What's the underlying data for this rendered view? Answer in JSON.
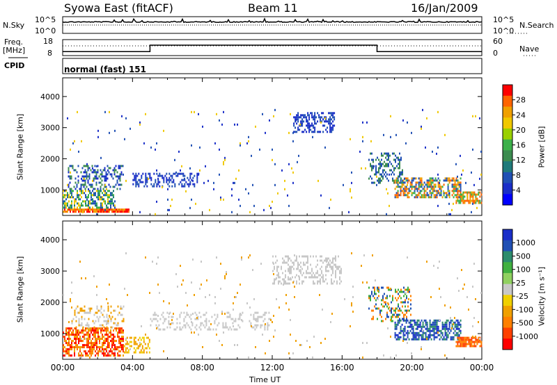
{
  "header": {
    "title": "Syowa East (fitACF)",
    "beam": "Beam 11",
    "date": "16/Jan/2009"
  },
  "panels": {
    "nsky": {
      "label": "N.Sky",
      "left_ticks": [
        "10^5",
        "10^0"
      ],
      "right_ticks": [
        "10^5",
        "10^0"
      ],
      "right_label": "N.Search"
    },
    "freq": {
      "label_line1": "Freq.",
      "label_line2": "[MHz]",
      "left_ticks": [
        "18",
        "8"
      ],
      "right_ticks": [
        "60",
        "0"
      ],
      "right_label": "Nave",
      "steps": [
        {
          "from_hour": 0,
          "to_hour": 5,
          "level": 0.75
        },
        {
          "from_hour": 5,
          "to_hour": 18,
          "level": 0.35
        },
        {
          "from_hour": 18,
          "to_hour": 24,
          "level": 0.75
        }
      ]
    },
    "cpid": {
      "label": "CPID",
      "value": "normal (fast) 151"
    }
  },
  "chart_data": [
    {
      "type": "heatmap",
      "name": "power",
      "ylabel": "Slant Range [km]",
      "xlabel": "",
      "ylim": [
        180,
        4600
      ],
      "yticks": [
        "4000",
        "3000",
        "2000",
        "1000"
      ],
      "ytick_values": [
        4000,
        3000,
        2000,
        1000
      ],
      "colorbar": {
        "label": "Power [dB]",
        "ticks": [
          "28",
          "24",
          "20",
          "16",
          "12",
          "8",
          "4"
        ],
        "colors": [
          "#ff0000",
          "#ff6400",
          "#f0a000",
          "#f0c800",
          "#9ad000",
          "#3cb04a",
          "#3c8c50",
          "#1f7a7a",
          "#2050b4",
          "#1a2ec8",
          "#0000ff"
        ]
      }
    },
    {
      "type": "heatmap",
      "name": "velocity",
      "ylabel": "Slant Range [km]",
      "xlabel": "Time UT",
      "ylim": [
        180,
        4600
      ],
      "yticks": [
        "4000",
        "3000",
        "2000",
        "1000"
      ],
      "ytick_values": [
        4000,
        3000,
        2000,
        1000
      ],
      "xticks": [
        "00:00",
        "04:00",
        "08:00",
        "12:00",
        "16:00",
        "20:00",
        "00:00"
      ],
      "xtick_hours": [
        0,
        4,
        8,
        12,
        16,
        20,
        24
      ],
      "colorbar": {
        "label": "Velocity [m s⁻¹]",
        "ticks": [
          "1000",
          "500",
          "100",
          "25",
          "-25",
          "-100",
          "-500",
          "-1000"
        ],
        "colors": [
          "#1a2ec8",
          "#2050b4",
          "#2c8c6c",
          "#40b040",
          "#90d060",
          "#c8c8c8",
          "#f0d000",
          "#f0a000",
          "#ff8000",
          "#ff4000",
          "#ff0000"
        ]
      }
    }
  ],
  "regions": {
    "power": [
      {
        "h0": 0.0,
        "h1": 3.8,
        "r0": 250,
        "r1": 400,
        "colors": [
          "#ff0000",
          "#ff6400",
          "#f0a000"
        ],
        "density": 0.9
      },
      {
        "h0": 0.0,
        "h1": 3.0,
        "r0": 400,
        "r1": 1000,
        "colors": [
          "#3cb04a",
          "#2050b4",
          "#f0c800",
          "#1f7a7a"
        ],
        "density": 0.55
      },
      {
        "h0": 0.3,
        "h1": 3.5,
        "r0": 1000,
        "r1": 1800,
        "colors": [
          "#2050b4",
          "#1a2ec8",
          "#3c8c50"
        ],
        "density": 0.35
      },
      {
        "h0": 4.0,
        "h1": 7.8,
        "r0": 1100,
        "r1": 1550,
        "colors": [
          "#2050b4",
          "#1a2ec8"
        ],
        "density": 0.4
      },
      {
        "h0": 13.2,
        "h1": 15.6,
        "r0": 2800,
        "r1": 3500,
        "colors": [
          "#2050b4",
          "#1a2ec8"
        ],
        "density": 0.5
      },
      {
        "h0": 17.5,
        "h1": 19.5,
        "r0": 1200,
        "r1": 2200,
        "colors": [
          "#2050b4",
          "#3c8c50"
        ],
        "density": 0.35
      },
      {
        "h0": 19.0,
        "h1": 22.8,
        "r0": 700,
        "r1": 1400,
        "colors": [
          "#f0a000",
          "#3cb04a",
          "#2050b4",
          "#ff6400"
        ],
        "density": 0.6
      },
      {
        "h0": 22.5,
        "h1": 24.0,
        "r0": 550,
        "r1": 950,
        "colors": [
          "#ff6400",
          "#f0a000",
          "#3cb04a"
        ],
        "density": 0.7
      },
      {
        "h0": 0.0,
        "h1": 24.0,
        "r0": 200,
        "r1": 3600,
        "colors": [
          "#2050b4",
          "#1a2ec8",
          "#f0c800"
        ],
        "density": 0.015
      }
    ],
    "velocity": [
      {
        "h0": 0.0,
        "h1": 3.5,
        "r0": 250,
        "r1": 1200,
        "colors": [
          "#ff8000",
          "#ff4000",
          "#f0a000",
          "#ff0000"
        ],
        "density": 0.6
      },
      {
        "h0": 0.5,
        "h1": 3.5,
        "r0": 1200,
        "r1": 1900,
        "colors": [
          "#c8c8c8",
          "#f0a000"
        ],
        "density": 0.25
      },
      {
        "h0": 3.5,
        "h1": 5.0,
        "r0": 400,
        "r1": 900,
        "colors": [
          "#f0a000",
          "#f0d000"
        ],
        "density": 0.4
      },
      {
        "h0": 5.0,
        "h1": 12.0,
        "r0": 1100,
        "r1": 1700,
        "colors": [
          "#c8c8c8"
        ],
        "density": 0.25
      },
      {
        "h0": 12.0,
        "h1": 16.0,
        "r0": 2600,
        "r1": 3500,
        "colors": [
          "#c8c8c8"
        ],
        "density": 0.35
      },
      {
        "h0": 17.5,
        "h1": 20.0,
        "r0": 1400,
        "r1": 2500,
        "colors": [
          "#ff8000",
          "#2050b4",
          "#40b040"
        ],
        "density": 0.3
      },
      {
        "h0": 19.0,
        "h1": 22.8,
        "r0": 800,
        "r1": 1450,
        "colors": [
          "#2050b4",
          "#2c8c6c",
          "#1a2ec8"
        ],
        "density": 0.6
      },
      {
        "h0": 22.5,
        "h1": 24.0,
        "r0": 550,
        "r1": 900,
        "colors": [
          "#ff4000",
          "#ff8000"
        ],
        "density": 0.75
      },
      {
        "h0": 0.0,
        "h1": 24.0,
        "r0": 200,
        "r1": 3600,
        "colors": [
          "#c8c8c8",
          "#f0a000"
        ],
        "density": 0.015
      }
    ]
  }
}
